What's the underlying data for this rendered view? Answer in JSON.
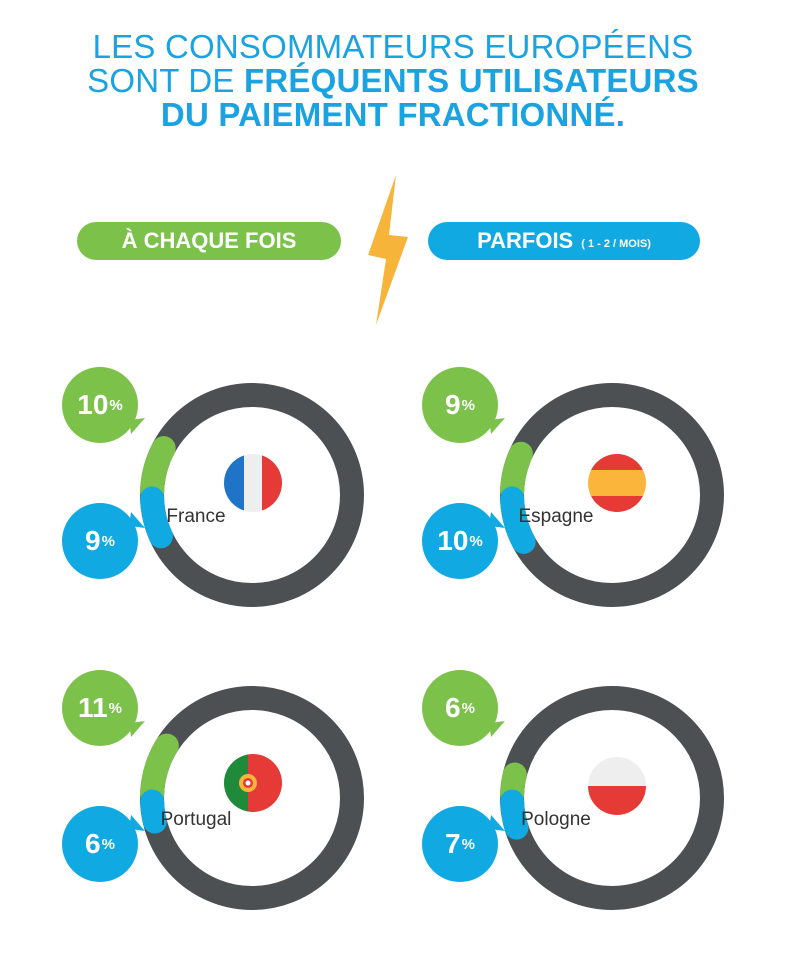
{
  "title": {
    "line1": "LES CONSOMMATEURS EUROPÉENS",
    "line2_prefix": "SONT DE ",
    "line2_bold": "FRÉQUENTS UTILISATEURS",
    "line3_bold": "DU PAIEMENT FRACTIONNÉ."
  },
  "legend": {
    "every_time": "À CHAQUE FOIS",
    "sometimes": "PARFOIS",
    "sometimes_note": "( 1 - 2 / MOIS)"
  },
  "colors": {
    "green": "#7cc24a",
    "blue": "#11a9e2",
    "ring": "#4d5052",
    "title": "#1aa3e0",
    "bolt": "#f6b53a"
  },
  "chart_data": {
    "type": "donut",
    "unit": "%",
    "series_names": [
      "À CHAQUE FOIS",
      "PARFOIS"
    ],
    "countries": [
      {
        "name": "France",
        "flag": "france-flag-icon",
        "every_time": 10,
        "every_time_label": "10",
        "sometimes": 9,
        "sometimes_label": "9",
        "pct": "%"
      },
      {
        "name": "Espagne",
        "flag": "spain-flag-icon",
        "every_time": 9,
        "every_time_label": "9",
        "sometimes": 10,
        "sometimes_label": "10",
        "pct": "%"
      },
      {
        "name": "Portugal",
        "flag": "portugal-flag-icon",
        "every_time": 11,
        "every_time_label": "11",
        "sometimes": 6,
        "sometimes_label": "6",
        "pct": "%"
      },
      {
        "name": "Pologne",
        "flag": "poland-flag-icon",
        "every_time": 6,
        "every_time_label": "6",
        "sometimes": 7,
        "sometimes_label": "7",
        "pct": "%"
      }
    ]
  }
}
